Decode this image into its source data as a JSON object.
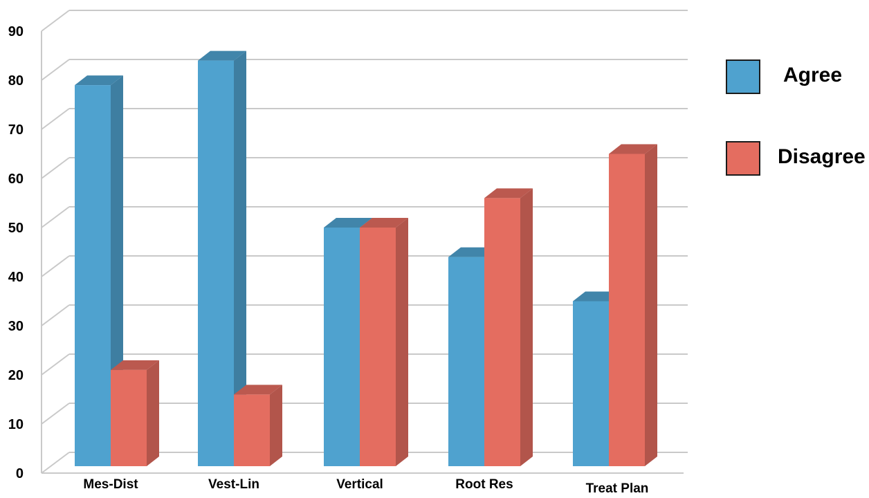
{
  "chart_data": {
    "type": "bar",
    "categories": [
      "Mes-Dist",
      "Vest-Lin",
      "Vertical",
      "Root Res",
      "Treat Plan"
    ],
    "series": [
      {
        "name": "Agree",
        "values": [
          79,
          84,
          50,
          44,
          35
        ]
      },
      {
        "name": "Disagree",
        "values": [
          21,
          16,
          50,
          56,
          65
        ]
      }
    ],
    "title": "",
    "xlabel": "",
    "ylabel": "",
    "ylim": [
      0,
      90
    ],
    "yticks": [
      0,
      10,
      20,
      30,
      40,
      50,
      60,
      70,
      80,
      90
    ],
    "grid": true,
    "legend_position": "right",
    "style": "3d",
    "colors": {
      "Agree": "#4fa2cf",
      "Disagree": "#e46d60"
    }
  }
}
